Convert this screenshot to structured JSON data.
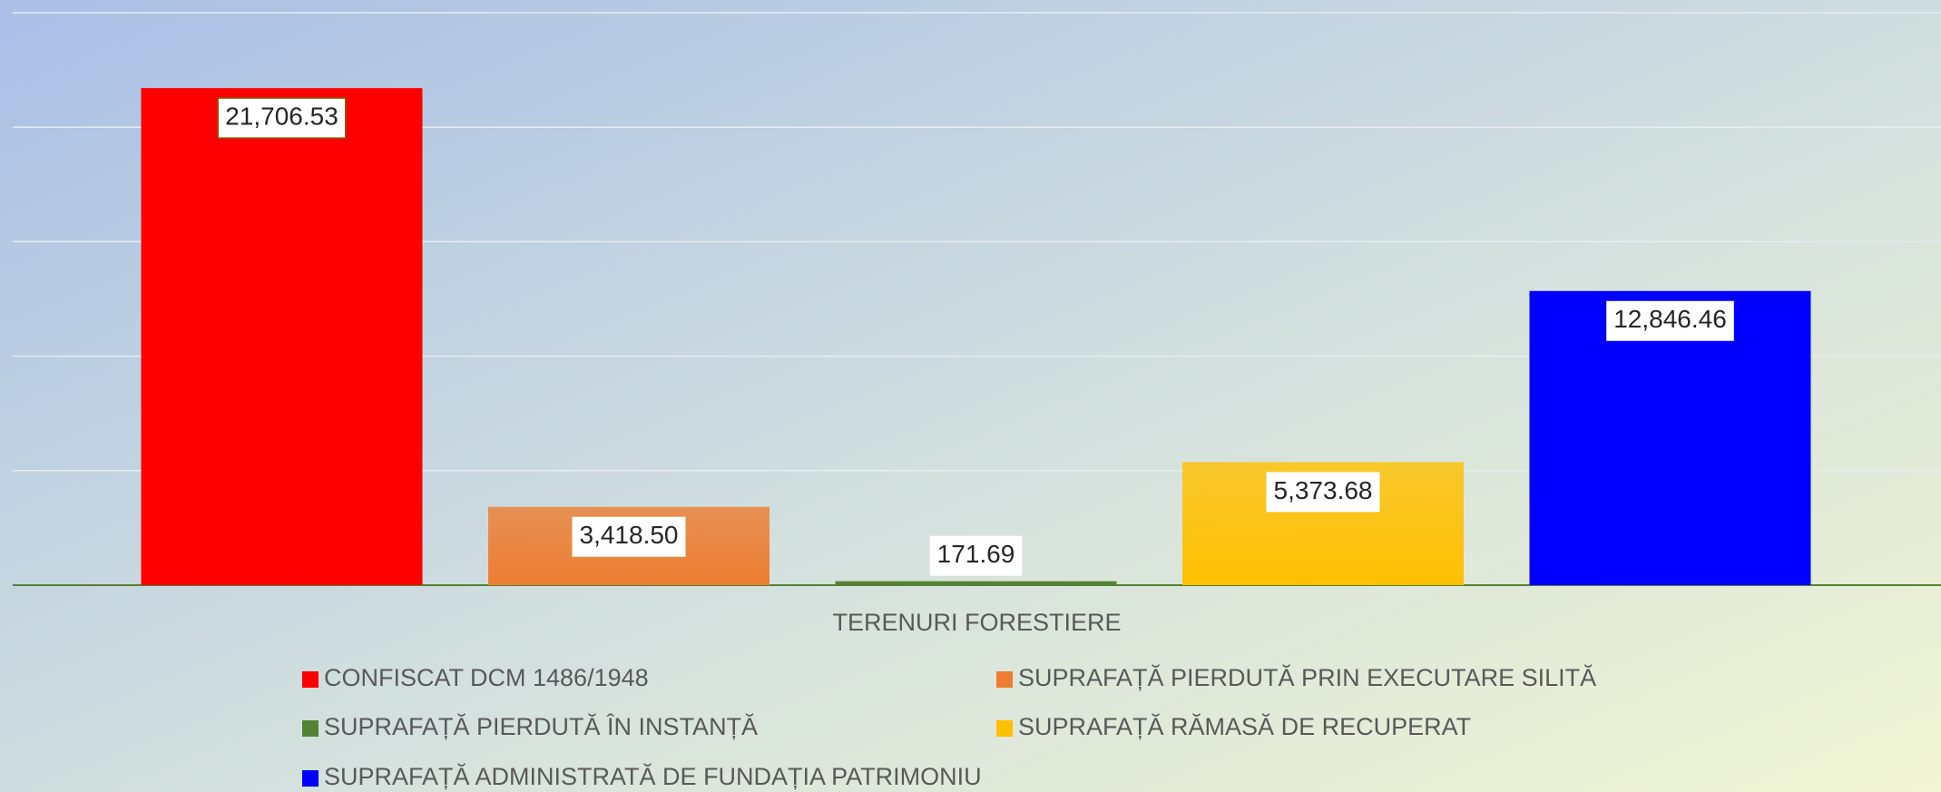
{
  "chart_data": {
    "type": "bar",
    "categories": [
      "TERENURI FORESTIERE"
    ],
    "ylim": [
      0,
      25000
    ],
    "yticks": [
      0,
      5000,
      10000,
      15000,
      20000,
      25000
    ],
    "grid": true,
    "legend": "bottom",
    "series": [
      {
        "name": "CONFISCAT DCM 1486/1948",
        "color": "#ff0000",
        "values": [
          21706.53
        ],
        "value_labels": [
          "21,706.53"
        ]
      },
      {
        "name": "SUPRAFAȚĂ PIERDUTĂ PRIN EXECUTARE SILITĂ",
        "color": "#ed7d31",
        "values": [
          3418.5
        ],
        "value_labels": [
          "3,418.50"
        ]
      },
      {
        "name": "SUPRAFAȚĂ PIERDUTĂ ÎN INSTANȚĂ",
        "color": "#548235",
        "values": [
          171.69
        ],
        "value_labels": [
          "171.69"
        ]
      },
      {
        "name": "SUPRAFAȚĂ RĂMASĂ DE RECUPERAT",
        "color": "#ffc000",
        "values": [
          5373.68
        ],
        "value_labels": [
          "5,373.68"
        ]
      },
      {
        "name": "SUPRAFAȚĂ ADMINISTRATĂ DE FUNDAȚIA PATRIMONIU",
        "color": "#0000ff",
        "values": [
          12846.46
        ],
        "value_labels": [
          "12,846.46"
        ]
      }
    ]
  }
}
